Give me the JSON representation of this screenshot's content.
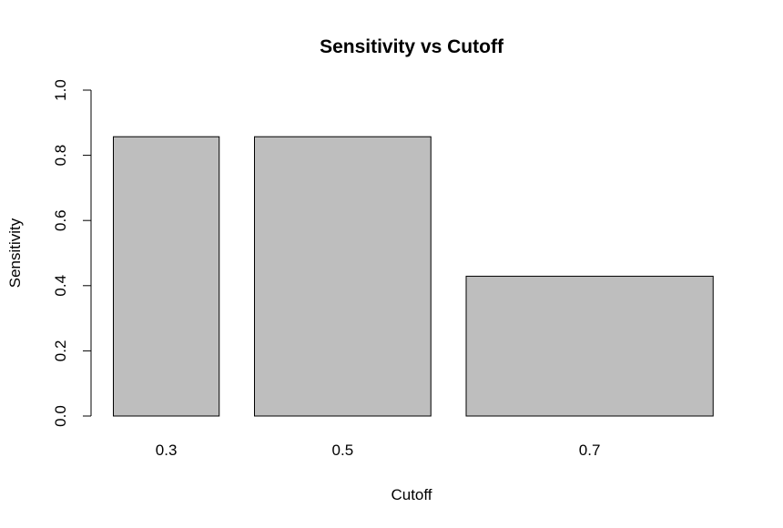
{
  "chart_data": {
    "type": "bar",
    "title": "Sensitivity vs Cutoff",
    "xlabel": "Cutoff",
    "ylabel": "Sensitivity",
    "categories": [
      "0.3",
      "0.5",
      "0.7"
    ],
    "values": [
      0.857,
      0.857,
      0.429
    ],
    "bar_widths": [
      0.3,
      0.5,
      0.7
    ],
    "ylim": [
      0,
      1
    ],
    "yticks": [
      0.0,
      0.2,
      0.4,
      0.6,
      0.8,
      1.0
    ],
    "ytick_labels": [
      "0.0",
      "0.2",
      "0.4",
      "0.6",
      "0.8",
      "1.0"
    ],
    "grid": false,
    "legend": "none",
    "colors": {
      "bar_fill": "#bebebe",
      "bar_stroke": "#000000",
      "background": "#ffffff",
      "text": "#000000"
    }
  }
}
